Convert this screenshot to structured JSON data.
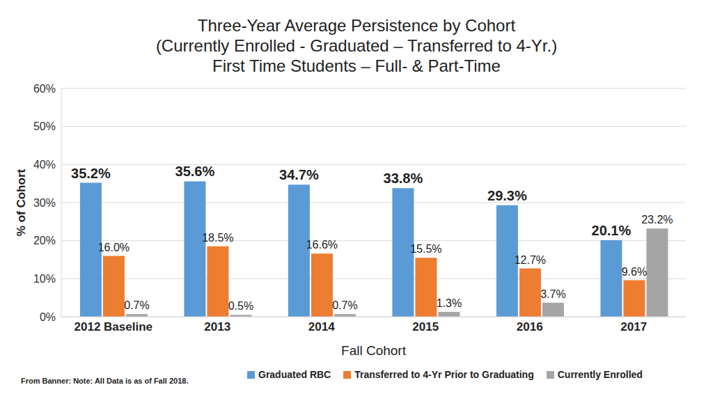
{
  "chart_data": {
    "type": "bar",
    "title": [
      "Three-Year Average Persistence by Cohort",
      "(Currently Enrolled - Graduated – Transferred to 4-Yr.)",
      "First Time Students – Full- & Part-Time"
    ],
    "x_label": "Fall Cohort",
    "y_label": "% of Cohort",
    "annotations": [
      "From Banner: Note: All Data is as of Fall 2018."
    ],
    "categories": [
      "2012 Baseline",
      "2013",
      "2014",
      "2015",
      "2016",
      "2017"
    ],
    "series": [
      {
        "name": "Graduated RBC",
        "color": "#5B9BD5",
        "values": [
          35.2,
          35.6,
          34.7,
          33.8,
          29.3,
          20.1
        ],
        "value_labels": [
          "35.2%",
          "35.6%",
          "34.7%",
          "33.8%",
          "29.3%",
          "20.1%"
        ]
      },
      {
        "name": "Transferred to 4-Yr Prior to Graduating",
        "color": "#ED7D31",
        "values": [
          16.0,
          18.5,
          16.6,
          15.5,
          12.7,
          9.6
        ],
        "value_labels": [
          "16.0%",
          "18.5%",
          "16.6%",
          "15.5%",
          "12.7%",
          "9.6%"
        ]
      },
      {
        "name": "Currently Enrolled",
        "color": "#A5A5A5",
        "values": [
          0.7,
          0.5,
          0.7,
          1.3,
          3.7,
          23.2
        ],
        "value_labels": [
          "0.7%",
          "0.5%",
          "0.7%",
          "1.3%",
          "3.7%",
          "23.2%"
        ]
      }
    ],
    "ylim": [
      0,
      60
    ],
    "yticks": [
      {
        "value": 0,
        "label": "0%"
      },
      {
        "value": 10,
        "label": "10%"
      },
      {
        "value": 20,
        "label": "20%"
      },
      {
        "value": 30,
        "label": "30%"
      },
      {
        "value": 40,
        "label": "40%"
      },
      {
        "value": 50,
        "label": "50%"
      },
      {
        "value": 60,
        "label": "60%"
      }
    ],
    "grid": true,
    "legend": "bottom",
    "data_labels": true
  }
}
